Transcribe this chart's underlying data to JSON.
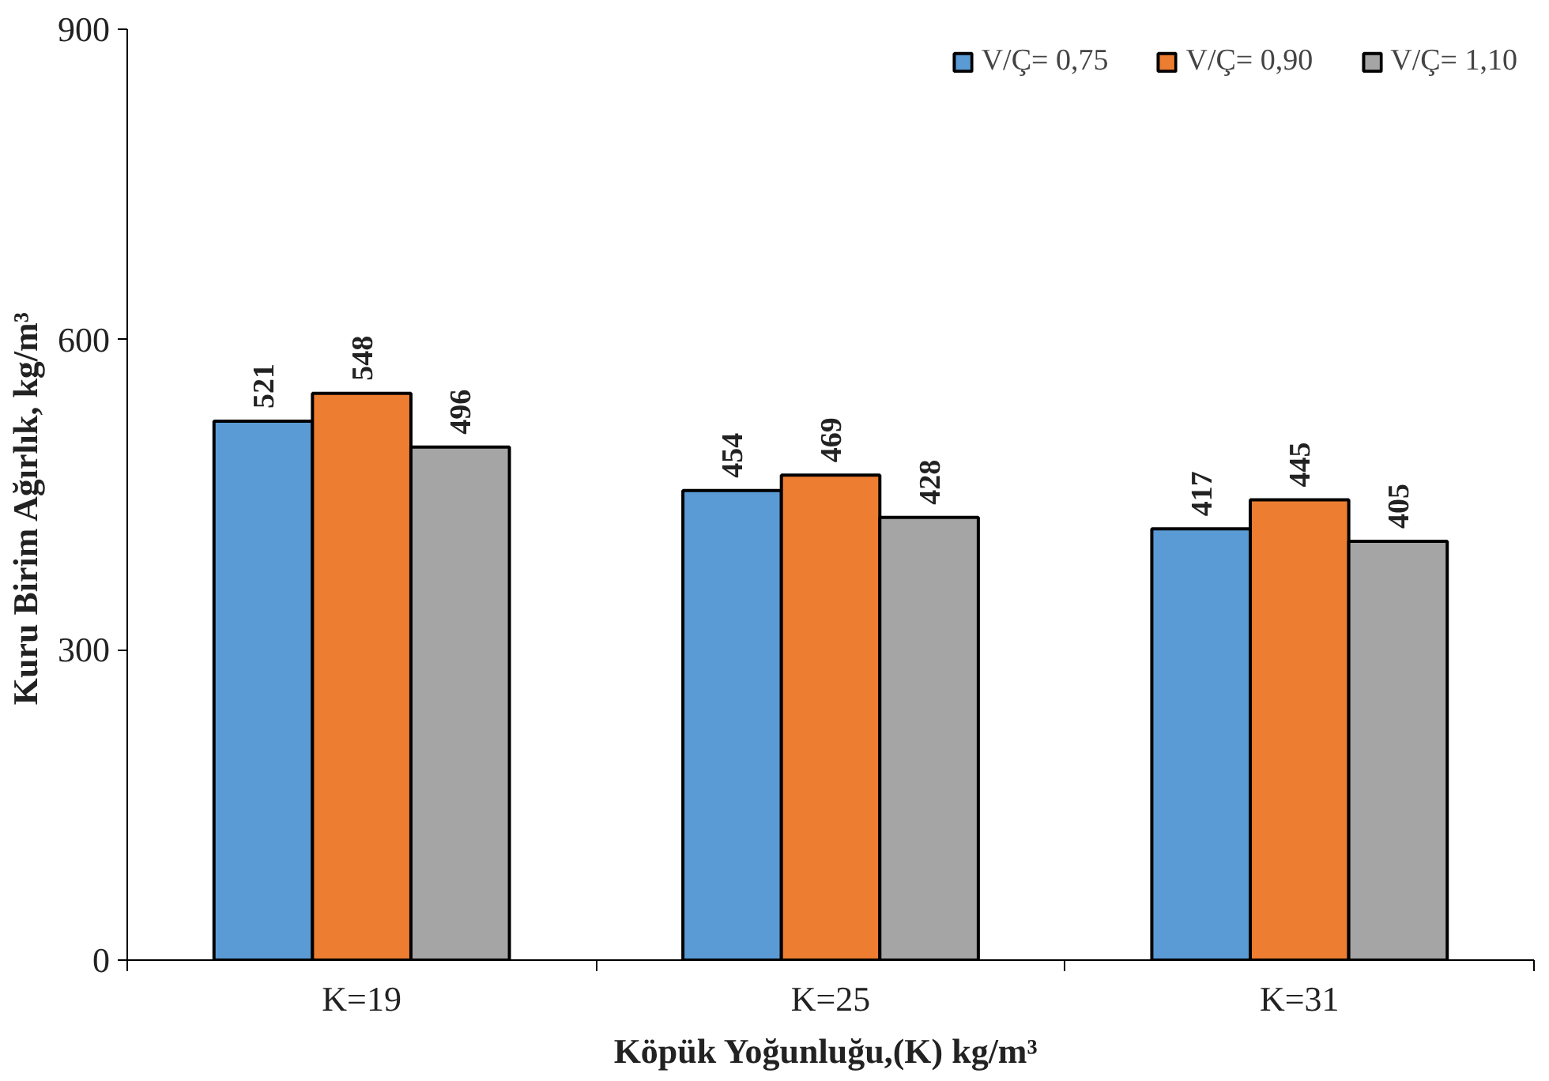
{
  "chart_data": {
    "type": "bar",
    "xlabel": "Köpük Yoğunluğu,(K)  kg/m³",
    "ylabel": "Kuru  Birim  Ağırlık,  kg/m³",
    "categories": [
      "K=19",
      "K=25",
      "K=31"
    ],
    "series": [
      {
        "name": "V/Ç= 0,75",
        "color": "#5b9bd5",
        "values": [
          521,
          454,
          417
        ]
      },
      {
        "name": "V/Ç= 0,90",
        "color": "#ed7d31",
        "values": [
          548,
          469,
          445
        ]
      },
      {
        "name": "V/Ç= 1,10",
        "color": "#a5a5a5",
        "values": [
          496,
          428,
          405
        ]
      }
    ],
    "ylim": [
      0,
      900
    ],
    "yticks": [
      0,
      300,
      600,
      900
    ],
    "grid": false,
    "legend": "top right",
    "data_labels": true
  }
}
